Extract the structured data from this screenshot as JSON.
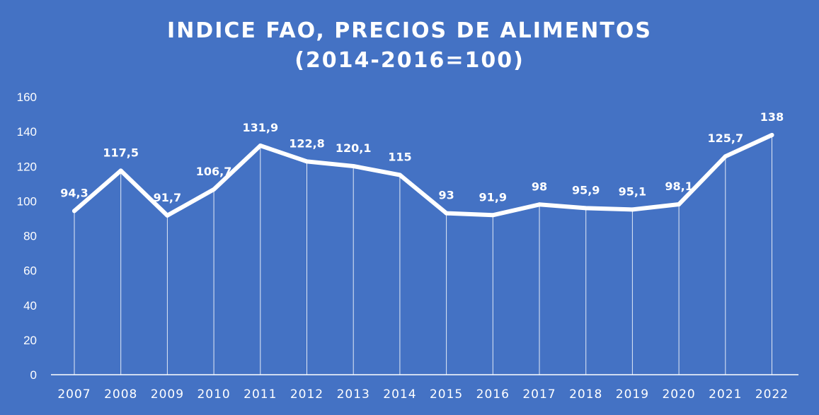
{
  "chart_data": {
    "type": "line",
    "title": "INDICE FAO, PRECIOS DE ALIMENTOS",
    "subtitle": "(2014-2016=100)",
    "xlabel": "",
    "ylabel": "",
    "categories": [
      "2007",
      "2008",
      "2009",
      "2010",
      "2011",
      "2012",
      "2013",
      "2014",
      "2015",
      "2016",
      "2017",
      "2018",
      "2019",
      "2020",
      "2021",
      "2022"
    ],
    "series": [
      {
        "values": [
          94.3,
          117.5,
          91.7,
          106.7,
          131.9,
          122.8,
          120.1,
          115,
          93,
          91.9,
          98,
          95.9,
          95.1,
          98.1,
          125.7,
          138
        ]
      }
    ],
    "data_labels": [
      "94,3",
      "117,5",
      "91,7",
      "106,7",
      "131,9",
      "122,8",
      "120,1",
      "115",
      "93",
      "91,9",
      "98",
      "95,9",
      "95,1",
      "98,1",
      "125,7",
      "138"
    ],
    "ylim": [
      0,
      160
    ],
    "yticks": [
      "0",
      "20",
      "40",
      "60",
      "80",
      "100",
      "120",
      "140",
      "160"
    ],
    "grid": false,
    "drop_lines": true,
    "legend": "none",
    "colors": {
      "background": "#4472C4",
      "line": "#ffffff",
      "text": "#ffffff"
    }
  }
}
